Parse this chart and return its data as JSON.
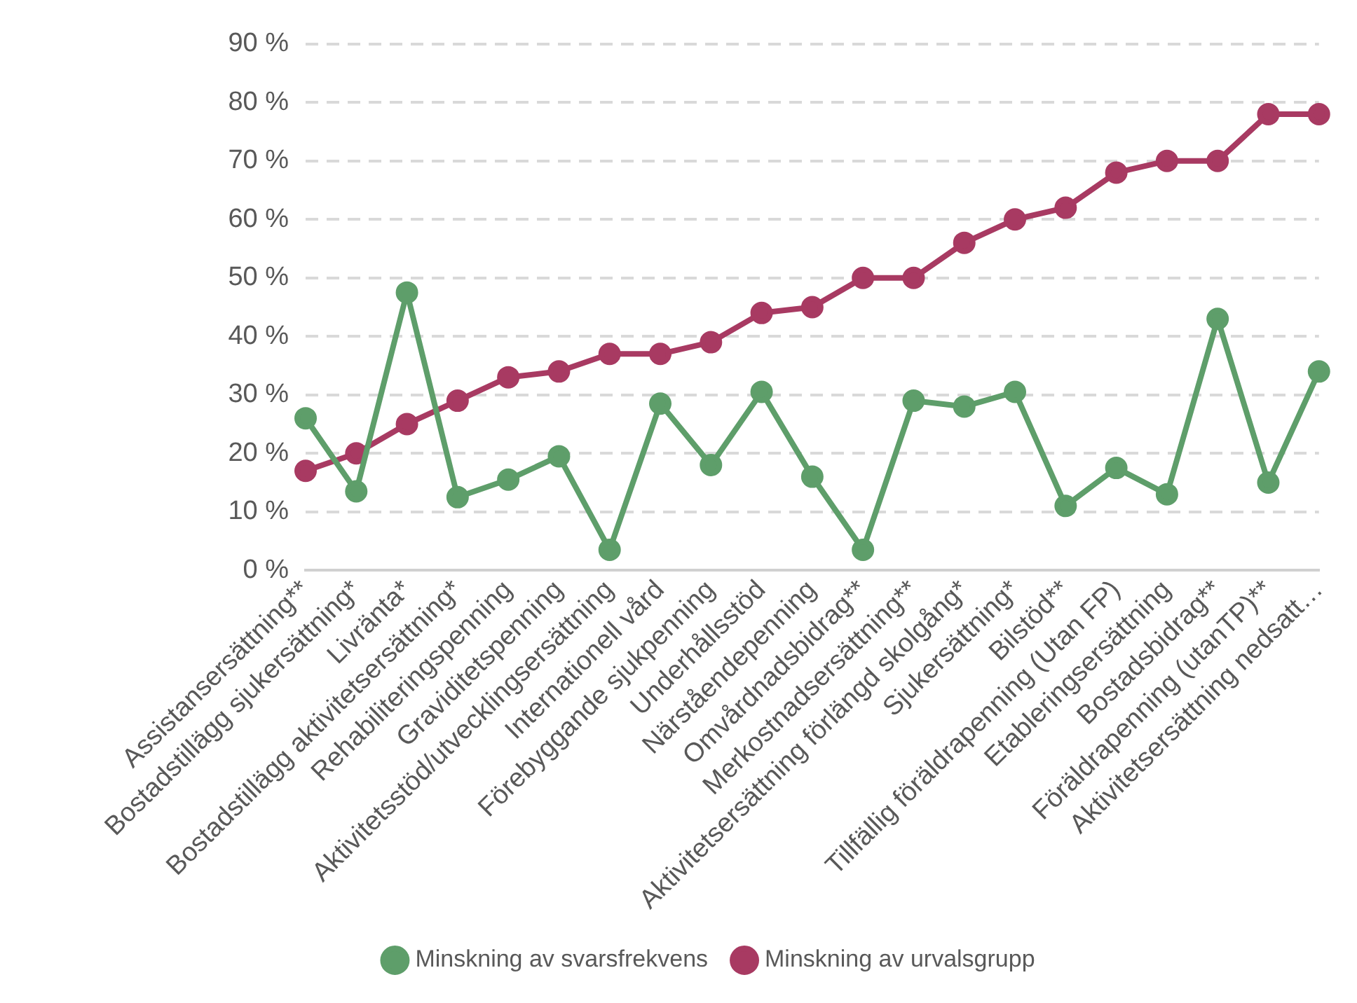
{
  "chart_data": {
    "type": "line",
    "categories": [
      "Assistansersättning**",
      "Bostadstillägg sjukersättning*",
      "Livränta*",
      "Bostadstillägg aktivitetsersättning*",
      "Rehabiliteringspenning",
      "Graviditetspenning",
      "Aktivitetsstöd/utvecklingsersättning",
      "Internationell vård",
      "Förebyggande sjukpenning",
      "Underhållsstöd",
      "Närståendepenning",
      "Omvårdnadsbidrag**",
      "Merkostnadsersättning**",
      "Aktivitetsersättning förlängd skolgång*",
      "Sjukersättning*",
      "Bilstöd**",
      "Tillfällig föräldrapenning (Utan FP)",
      "Etableringsersättning",
      "Bostadsbidrag**",
      "Föräldrapenning (utanTP)**",
      "Aktivitetsersättning nedsatt…"
    ],
    "series": [
      {
        "name": "Minskning av svarsfrekvens",
        "color": "#5e9e6a",
        "values": [
          26,
          13.5,
          47.5,
          12.5,
          15.5,
          19.5,
          3.5,
          28.5,
          18,
          30.5,
          16,
          3.5,
          29,
          28,
          30.5,
          11,
          17.5,
          13,
          43,
          15,
          34
        ]
      },
      {
        "name": "Minskning av urvalsgrupp",
        "color": "#a83a62",
        "values": [
          17,
          20,
          25,
          29,
          33,
          34,
          37,
          37,
          39,
          44,
          45,
          50,
          50,
          56,
          60,
          62,
          68,
          70,
          70,
          78,
          78
        ]
      }
    ],
    "ylim": [
      0,
      90
    ],
    "yticks": [
      {
        "value": 0,
        "label": "0 %"
      },
      {
        "value": 10,
        "label": "10 %"
      },
      {
        "value": 20,
        "label": "20 %"
      },
      {
        "value": 30,
        "label": "30 %"
      },
      {
        "value": 40,
        "label": "40 %"
      },
      {
        "value": 50,
        "label": "50 %"
      },
      {
        "value": 60,
        "label": "60 %"
      },
      {
        "value": 70,
        "label": "70 %"
      },
      {
        "value": 80,
        "label": "80 %"
      },
      {
        "value": 90,
        "label": "90 %"
      }
    ],
    "grid": "y",
    "legend": "bottom",
    "marker": "circle",
    "line_style": "solid"
  }
}
